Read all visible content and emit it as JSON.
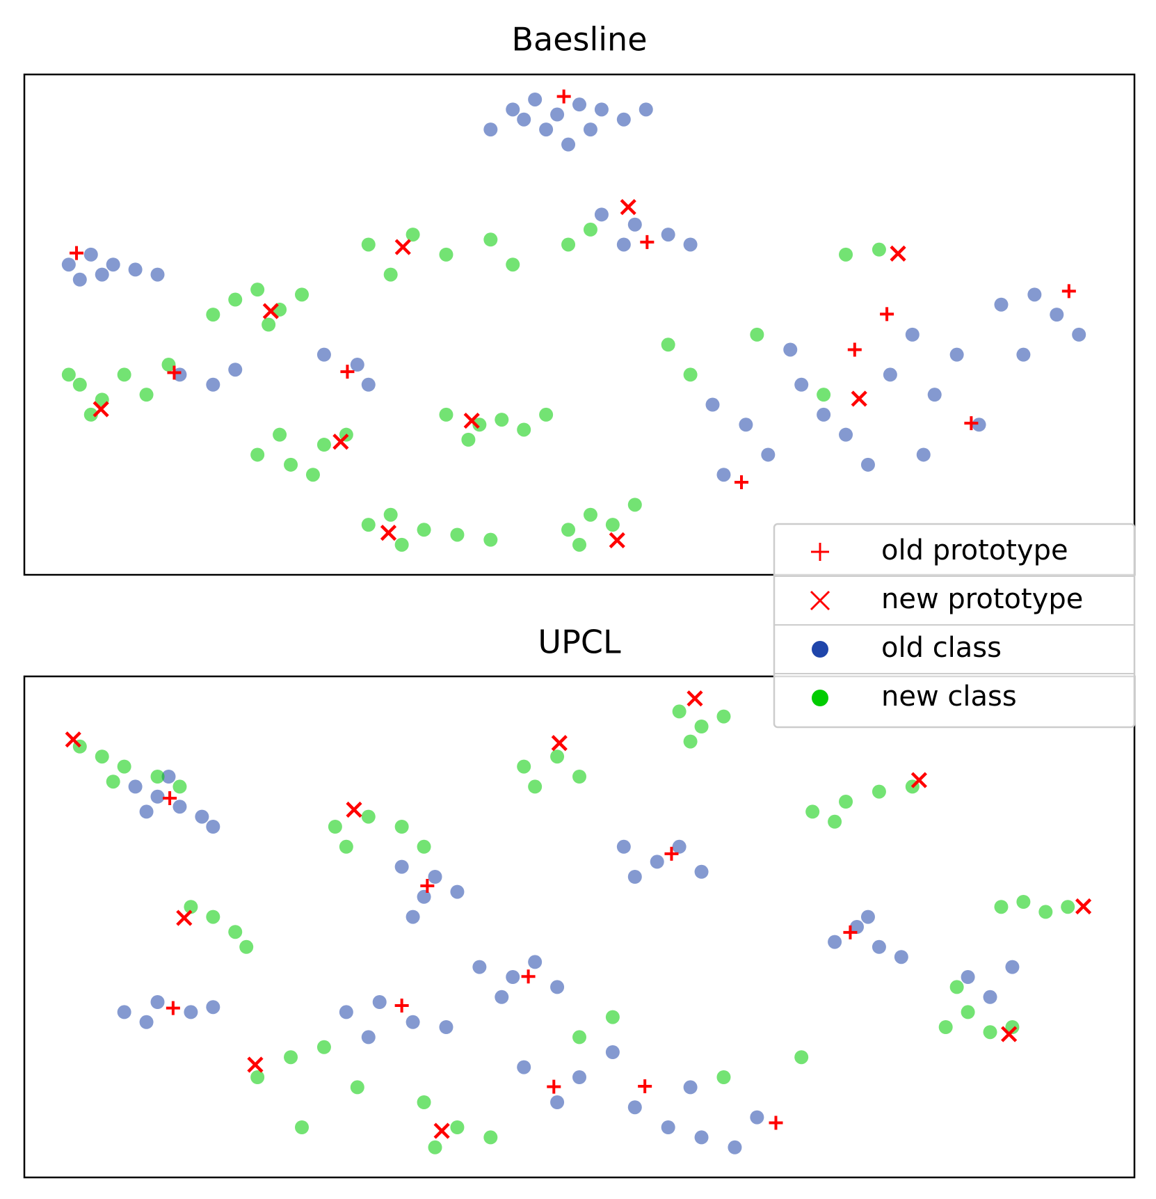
{
  "chart_data": [
    {
      "type": "scatter",
      "title": "Baesline",
      "xlim": [
        0,
        100
      ],
      "ylim": [
        0,
        100
      ],
      "legend": "lower right",
      "series": [
        {
          "name": "old class",
          "color": "#1f45aa",
          "marker": "o",
          "x": [
            44,
            46,
            48,
            50,
            52,
            54,
            47,
            51,
            45,
            56,
            42,
            49,
            4,
            6,
            8,
            10,
            5,
            7,
            12,
            52,
            55,
            58,
            60,
            54,
            14,
            17,
            19,
            27,
            30,
            31,
            62,
            65,
            67,
            63,
            70,
            72,
            74,
            78,
            80,
            82,
            84,
            88,
            91,
            93,
            86,
            76,
            69,
            90,
            95,
            81
          ],
          "values": [
            93,
            95,
            92,
            94,
            93,
            91,
            89,
            89,
            91,
            93,
            89,
            86,
            62,
            64,
            62,
            61,
            59,
            60,
            60,
            72,
            70,
            68,
            66,
            66,
            40,
            38,
            41,
            44,
            42,
            38,
            34,
            30,
            24,
            20,
            38,
            32,
            28,
            40,
            48,
            36,
            44,
            54,
            56,
            52,
            30,
            22,
            45,
            44,
            48,
            24
          ]
        },
        {
          "name": "new class",
          "color": "#00cc00",
          "marker": "o",
          "x": [
            19,
            21,
            23,
            25,
            17,
            22,
            5,
            7,
            9,
            11,
            6,
            13,
            4,
            21,
            24,
            27,
            29,
            23,
            26,
            38,
            41,
            43,
            45,
            47,
            40,
            31,
            33,
            36,
            39,
            42,
            34,
            49,
            51,
            53,
            55,
            50,
            31,
            35,
            38,
            42,
            44,
            33,
            49,
            51,
            74,
            77,
            66,
            72,
            58,
            60
          ],
          "values": [
            55,
            57,
            53,
            56,
            52,
            50,
            38,
            35,
            40,
            36,
            32,
            42,
            40,
            24,
            22,
            26,
            28,
            28,
            20,
            32,
            30,
            31,
            29,
            32,
            27,
            10,
            12,
            9,
            8,
            7,
            6,
            9,
            12,
            10,
            14,
            6,
            66,
            68,
            64,
            67,
            62,
            60,
            66,
            69,
            64,
            65,
            48,
            36,
            46,
            40
          ]
        },
        {
          "name": "old prototype",
          "color": "#ff0000",
          "marker": "+",
          "x": [
            48.6,
            4.7,
            56.1,
            94.1,
            77.7,
            74.8,
            13.5,
            29.1,
            85.3,
            64.6
          ],
          "values": [
            95.6,
            64.3,
            66.5,
            56.7,
            52.1,
            45.0,
            40.4,
            40.6,
            30.3,
            18.5
          ]
        },
        {
          "name": "new prototype",
          "color": "#ff0000",
          "marker": "x",
          "x": [
            34.1,
            54.4,
            78.7,
            22.2,
            6.9,
            40.3,
            28.5,
            75.2,
            32.8,
            53.4
          ],
          "values": [
            65.5,
            73.5,
            64.2,
            52.7,
            33.1,
            30.8,
            26.6,
            35.2,
            8.4,
            6.9
          ]
        }
      ]
    },
    {
      "type": "scatter",
      "title": "UPCL",
      "xlim": [
        0,
        100
      ],
      "ylim": [
        0,
        100
      ],
      "series": [
        {
          "color": "#1f45aa",
          "marker": "o",
          "x": [
            10,
            12,
            14,
            16,
            13,
            11,
            17,
            34,
            36,
            37,
            35,
            39,
            54,
            57,
            59,
            61,
            55,
            73,
            75,
            77,
            79,
            76,
            41,
            44,
            46,
            48,
            43,
            9,
            12,
            15,
            11,
            17,
            29,
            32,
            35,
            38,
            31,
            45,
            48,
            50,
            53,
            55,
            58,
            61,
            64,
            60,
            66,
            85,
            87,
            89
          ],
          "values": [
            78,
            76,
            74,
            72,
            80,
            73,
            70,
            62,
            56,
            60,
            52,
            57,
            66,
            63,
            66,
            61,
            60,
            47,
            50,
            46,
            44,
            52,
            42,
            40,
            43,
            38,
            36,
            33,
            35,
            33,
            31,
            34,
            33,
            35,
            31,
            30,
            28,
            22,
            15,
            20,
            25,
            14,
            10,
            8,
            6,
            18,
            12,
            40,
            36,
            42
          ]
        },
        {
          "color": "#00cc00",
          "marker": "o",
          "x": [
            5,
            7,
            9,
            12,
            14,
            8,
            59,
            61,
            63,
            60,
            45,
            48,
            50,
            46,
            71,
            74,
            77,
            80,
            73,
            28,
            31,
            34,
            36,
            29,
            15,
            17,
            19,
            20,
            88,
            90,
            92,
            94,
            83,
            85,
            87,
            89,
            84,
            21,
            24,
            27,
            30,
            36,
            39,
            42,
            37,
            50,
            53,
            63,
            70,
            25
          ],
          "values": [
            86,
            84,
            82,
            80,
            78,
            79,
            93,
            90,
            92,
            87,
            82,
            84,
            80,
            78,
            73,
            75,
            77,
            78,
            71,
            70,
            72,
            70,
            66,
            66,
            54,
            52,
            49,
            46,
            54,
            55,
            53,
            54,
            30,
            33,
            29,
            30,
            38,
            20,
            24,
            26,
            18,
            15,
            10,
            8,
            6,
            28,
            32,
            20,
            24,
            10
          ]
        },
        {
          "color": "#ff0000",
          "marker": "+",
          "x": [
            13.1,
            58.3,
            36.3,
            74.4,
            45.4,
            13.4,
            34.0,
            47.7,
            55.9,
            67.7
          ],
          "values": [
            75.7,
            64.6,
            58.2,
            48.9,
            40.1,
            33.8,
            34.3,
            18.1,
            18.2,
            10.9
          ]
        },
        {
          "color": "#ff0000",
          "marker": "x",
          "x": [
            4.4,
            60.4,
            48.2,
            80.6,
            29.7,
            14.4,
            95.4,
            88.7,
            20.8,
            37.6
          ],
          "values": [
            87.4,
            95.6,
            86.7,
            79.3,
            73.4,
            51.8,
            54.1,
            28.6,
            22.5,
            9.3
          ]
        }
      ]
    }
  ]
}
